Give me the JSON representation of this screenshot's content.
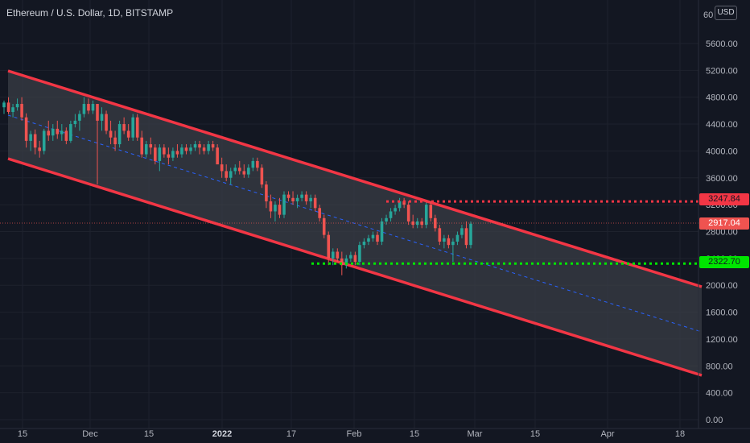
{
  "header": {
    "title": "Ethereum / U.S. Dollar, 1D, BITSTAMP",
    "currency": "USD",
    "top_tick_partial": "60"
  },
  "price_labels": {
    "resistance": "3247.84",
    "current": "2917.04",
    "support": "2322.70"
  },
  "colors": {
    "background": "#131722",
    "up": "#26a69a",
    "down": "#ef5350",
    "channel": "#f23645",
    "support": "#00e600",
    "resistance": "#f23645",
    "midline": "#2962ff"
  },
  "chart_data": {
    "type": "candlestick",
    "title": "Ethereum / U.S. Dollar, 1D, BITSTAMP",
    "ylim": [
      0,
      6000
    ],
    "y_ticks": [
      "0.00",
      "400.00",
      "800.00",
      "1200.00",
      "1600.00",
      "2000.00",
      "2400.00",
      "2800.00",
      "3200.00",
      "3600.00",
      "4000.00",
      "4400.00",
      "4800.00",
      "5200.00",
      "5600.00"
    ],
    "x_ticks": [
      "15",
      "Dec",
      "15",
      "2022",
      "17",
      "Feb",
      "15",
      "Mar",
      "15",
      "Apr",
      "18"
    ],
    "current_price": 2917.04,
    "horizontal_levels": [
      {
        "price": 3247.84,
        "style": "dotted",
        "color": "red"
      },
      {
        "price": 2322.7,
        "style": "dotted",
        "color": "green"
      }
    ],
    "channel": {
      "upper_line": [
        {
          "date": "2021-11-10",
          "price": 5150
        },
        {
          "date": "2022-04-27",
          "price": 1900
        }
      ],
      "lower_line": [
        {
          "date": "2021-11-10",
          "price": 3880
        },
        {
          "date": "2022-04-27",
          "price": 650
        }
      ],
      "midline": [
        {
          "date": "2021-11-10",
          "price": 4520
        },
        {
          "date": "2022-04-27",
          "price": 1270
        }
      ]
    },
    "candles_ohlc": [
      [
        4650,
        4750,
        4550,
        4720
      ],
      [
        4720,
        4800,
        4550,
        4580
      ],
      [
        4580,
        4700,
        4500,
        4650
      ],
      [
        4650,
        4780,
        4600,
        4700
      ],
      [
        4700,
        4800,
        4450,
        4500
      ],
      [
        4500,
        4560,
        4050,
        4150
      ],
      [
        4150,
        4300,
        4000,
        4250
      ],
      [
        4250,
        4320,
        3950,
        4050
      ],
      [
        4050,
        4150,
        3900,
        4000
      ],
      [
        4000,
        4330,
        3950,
        4300
      ],
      [
        4300,
        4450,
        4150,
        4230
      ],
      [
        4230,
        4400,
        4150,
        4330
      ],
      [
        4330,
        4450,
        4180,
        4250
      ],
      [
        4250,
        4400,
        4150,
        4300
      ],
      [
        4300,
        4350,
        4100,
        4150
      ],
      [
        4150,
        4450,
        4120,
        4400
      ],
      [
        4400,
        4550,
        4350,
        4450
      ],
      [
        4450,
        4600,
        4300,
        4550
      ],
      [
        4550,
        4800,
        4500,
        4700
      ],
      [
        4700,
        4780,
        4550,
        4600
      ],
      [
        4600,
        4750,
        4550,
        4700
      ],
      [
        4700,
        4700,
        3500,
        4450
      ],
      [
        4450,
        4650,
        4300,
        4550
      ],
      [
        4550,
        4600,
        4250,
        4300
      ],
      [
        4300,
        4450,
        4100,
        4200
      ],
      [
        4200,
        4300,
        4000,
        4100
      ],
      [
        4100,
        4450,
        4050,
        4400
      ],
      [
        4400,
        4500,
        4250,
        4300
      ],
      [
        4300,
        4400,
        4150,
        4200
      ],
      [
        4200,
        4550,
        4150,
        4500
      ],
      [
        4500,
        4550,
        4150,
        4200
      ],
      [
        4200,
        4300,
        3900,
        3950
      ],
      [
        3950,
        4150,
        3900,
        4100
      ],
      [
        4100,
        4200,
        3950,
        4050
      ],
      [
        4050,
        4100,
        3800,
        3850
      ],
      [
        3850,
        4100,
        3700,
        4050
      ],
      [
        4050,
        4100,
        3900,
        3950
      ],
      [
        3950,
        4050,
        3800,
        3900
      ],
      [
        3900,
        4050,
        3850,
        4000
      ],
      [
        4000,
        4100,
        3900,
        3950
      ],
      [
        3950,
        4100,
        3900,
        4050
      ],
      [
        4050,
        4100,
        3950,
        4000
      ],
      [
        4000,
        4100,
        3950,
        4050
      ],
      [
        4050,
        4150,
        4000,
        4100
      ],
      [
        4100,
        4150,
        3950,
        4050
      ],
      [
        4050,
        4100,
        3950,
        4000
      ],
      [
        4000,
        4150,
        3950,
        4100
      ],
      [
        4100,
        4150,
        4000,
        4050
      ],
      [
        4050,
        4100,
        3900,
        3800
      ],
      [
        3800,
        3900,
        3600,
        3700
      ],
      [
        3700,
        3800,
        3550,
        3600
      ],
      [
        3600,
        3750,
        3500,
        3700
      ],
      [
        3700,
        3800,
        3650,
        3750
      ],
      [
        3750,
        3850,
        3650,
        3700
      ],
      [
        3700,
        3800,
        3600,
        3650
      ],
      [
        3650,
        3800,
        3600,
        3750
      ],
      [
        3750,
        3900,
        3700,
        3850
      ],
      [
        3850,
        3900,
        3700,
        3750
      ],
      [
        3750,
        3800,
        3450,
        3500
      ],
      [
        3500,
        3550,
        3150,
        3250
      ],
      [
        3250,
        3350,
        3000,
        3100
      ],
      [
        3100,
        3250,
        2950,
        3200
      ],
      [
        3200,
        3300,
        3000,
        3050
      ],
      [
        3050,
        3400,
        3000,
        3350
      ],
      [
        3350,
        3400,
        3250,
        3300
      ],
      [
        3300,
        3400,
        3200,
        3250
      ],
      [
        3250,
        3350,
        3150,
        3300
      ],
      [
        3300,
        3400,
        3250,
        3350
      ],
      [
        3350,
        3400,
        3200,
        3250
      ],
      [
        3250,
        3350,
        3150,
        3300
      ],
      [
        3300,
        3350,
        3100,
        3150
      ],
      [
        3150,
        3200,
        2950,
        3000
      ],
      [
        3000,
        3050,
        2700,
        2750
      ],
      [
        2750,
        2800,
        2300,
        2400
      ],
      [
        2400,
        2550,
        2300,
        2500
      ],
      [
        2500,
        2550,
        2350,
        2400
      ],
      [
        2400,
        2500,
        2150,
        2300
      ],
      [
        2300,
        2450,
        2250,
        2400
      ],
      [
        2400,
        2500,
        2350,
        2450
      ],
      [
        2450,
        2500,
        2300,
        2350
      ],
      [
        2350,
        2650,
        2300,
        2600
      ],
      [
        2600,
        2700,
        2550,
        2650
      ],
      [
        2650,
        2750,
        2600,
        2700
      ],
      [
        2700,
        2800,
        2650,
        2750
      ],
      [
        2750,
        2800,
        2600,
        2650
      ],
      [
        2650,
        3000,
        2600,
        2950
      ],
      [
        2950,
        3050,
        2900,
        3000
      ],
      [
        3000,
        3150,
        2950,
        3100
      ],
      [
        3100,
        3200,
        3050,
        3150
      ],
      [
        3150,
        3300,
        3100,
        3250
      ],
      [
        3250,
        3300,
        3150,
        3200
      ],
      [
        3200,
        3250,
        2900,
        2950
      ],
      [
        2950,
        3050,
        2850,
        2900
      ],
      [
        2900,
        3000,
        2850,
        2950
      ],
      [
        2950,
        3000,
        2850,
        2900
      ],
      [
        2900,
        3250,
        2850,
        3200
      ],
      [
        3200,
        3250,
        2950,
        3000
      ],
      [
        3000,
        3050,
        2800,
        2850
      ],
      [
        2850,
        2900,
        2600,
        2650
      ],
      [
        2650,
        2750,
        2550,
        2700
      ],
      [
        2700,
        2750,
        2550,
        2600
      ],
      [
        2600,
        2700,
        2350,
        2650
      ],
      [
        2650,
        2800,
        2600,
        2750
      ],
      [
        2750,
        2900,
        2700,
        2850
      ],
      [
        2850,
        2950,
        2550,
        2600
      ],
      [
        2600,
        2950,
        2550,
        2917
      ]
    ]
  }
}
